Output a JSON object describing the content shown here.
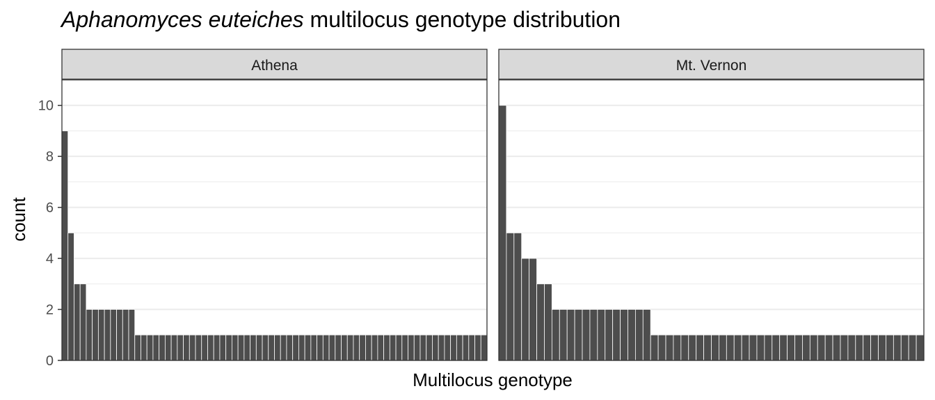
{
  "chart_data": {
    "type": "bar",
    "title_italic": "Aphanomyces euteiches",
    "title_rest": " multilocus genotype distribution",
    "xlabel": "Multilocus genotype",
    "ylabel": "count",
    "ylim": [
      0,
      11
    ],
    "yticks": [
      "0",
      "2",
      "4",
      "6",
      "8",
      "10"
    ],
    "grid": true,
    "colors": {
      "bar": "#4d4d4d",
      "strip": "#d9d9d9",
      "grid": "#ebebeb"
    },
    "panels": [
      {
        "name": "Athena",
        "values": [
          9,
          5,
          3,
          3,
          2,
          2,
          2,
          2,
          2,
          2,
          2,
          2,
          1,
          1,
          1,
          1,
          1,
          1,
          1,
          1,
          1,
          1,
          1,
          1,
          1,
          1,
          1,
          1,
          1,
          1,
          1,
          1,
          1,
          1,
          1,
          1,
          1,
          1,
          1,
          1,
          1,
          1,
          1,
          1,
          1,
          1,
          1,
          1,
          1,
          1,
          1,
          1,
          1,
          1,
          1,
          1,
          1,
          1,
          1,
          1,
          1,
          1,
          1,
          1,
          1,
          1,
          1,
          1,
          1,
          1
        ]
      },
      {
        "name": "Mt. Vernon",
        "values": [
          10,
          5,
          5,
          4,
          4,
          3,
          3,
          2,
          2,
          2,
          2,
          2,
          2,
          2,
          2,
          2,
          2,
          2,
          2,
          2,
          1,
          1,
          1,
          1,
          1,
          1,
          1,
          1,
          1,
          1,
          1,
          1,
          1,
          1,
          1,
          1,
          1,
          1,
          1,
          1,
          1,
          1,
          1,
          1,
          1,
          1,
          1,
          1,
          1,
          1,
          1,
          1,
          1,
          1,
          1,
          1
        ]
      }
    ]
  }
}
